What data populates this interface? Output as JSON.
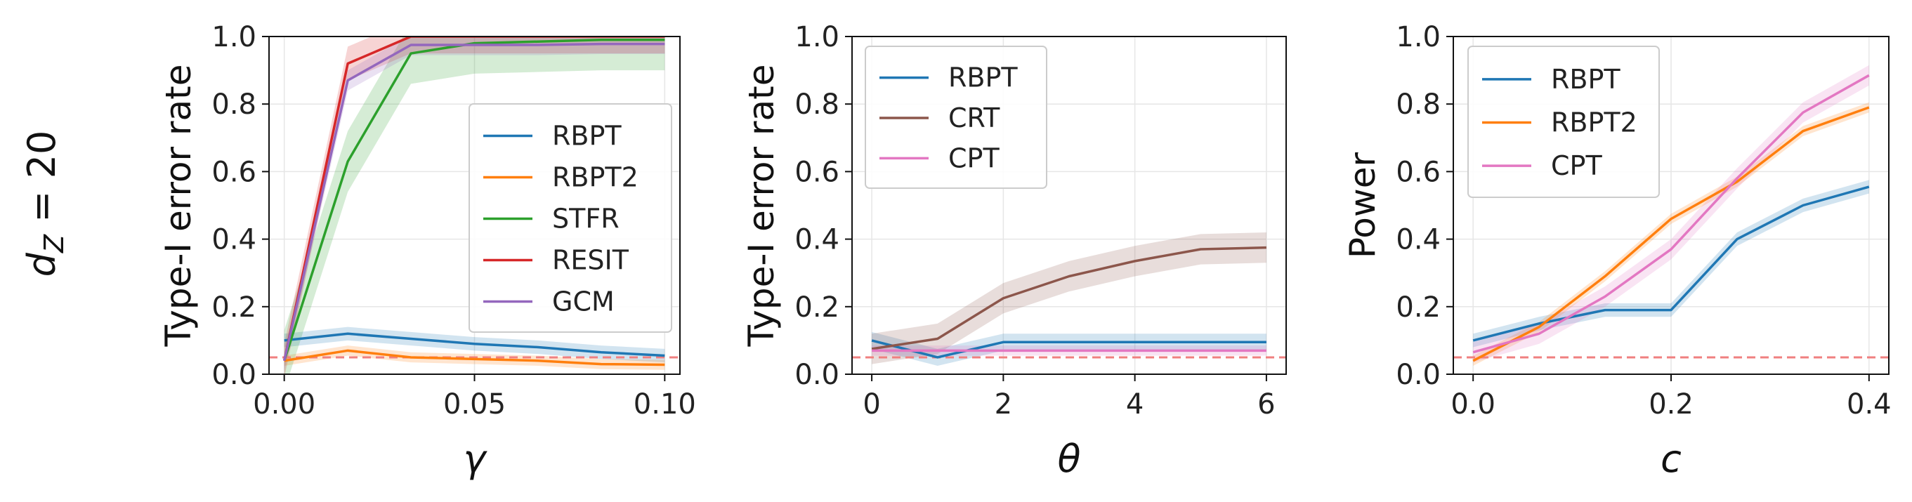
{
  "row_label": "d",
  "row_label_sub": "Z",
  "row_label_eq": " = 20",
  "reference_line": {
    "value": 0.05,
    "color": "#f08080"
  },
  "chart_data": [
    {
      "type": "line",
      "ylabel": "Type-I error rate",
      "xlabel": "γ",
      "xlim": [
        -0.004,
        0.104
      ],
      "ylim": [
        0,
        1
      ],
      "xticks": [
        0,
        0.05,
        0.1
      ],
      "xtick_labels": [
        "0.00",
        "0.05",
        "0.10"
      ],
      "yticks": [
        0,
        0.2,
        0.4,
        0.6,
        0.8,
        1.0
      ],
      "ytick_labels": [
        "0.0",
        "0.2",
        "0.4",
        "0.6",
        "0.8",
        "1.0"
      ],
      "legend_position": "center-right",
      "grid": true,
      "x": [
        0,
        0.0167,
        0.0333,
        0.05,
        0.0667,
        0.0833,
        0.1
      ],
      "series": [
        {
          "name": "RBPT",
          "color": "#1f77b4",
          "values": [
            0.1,
            0.12,
            0.105,
            0.09,
            0.08,
            0.065,
            0.055
          ],
          "band": 0.02
        },
        {
          "name": "RBPT2",
          "color": "#ff7f0e",
          "values": [
            0.04,
            0.07,
            0.05,
            0.045,
            0.04,
            0.03,
            0.028
          ],
          "band": 0.015
        },
        {
          "name": "STFR",
          "color": "#2ca02c",
          "values": [
            0.04,
            0.63,
            0.95,
            0.98,
            0.985,
            0.99,
            0.99
          ],
          "band": 0.09
        },
        {
          "name": "RESIT",
          "color": "#d62728",
          "values": [
            0.04,
            0.92,
            1.0,
            1.0,
            1.0,
            1.0,
            1.0
          ],
          "band": 0.05
        },
        {
          "name": "GCM",
          "color": "#9467bd",
          "values": [
            0.04,
            0.87,
            0.975,
            0.975,
            0.975,
            0.978,
            0.978
          ],
          "band": 0.03
        }
      ]
    },
    {
      "type": "line",
      "ylabel": "Type-I error rate",
      "xlabel": "θ",
      "xlim": [
        -0.3,
        6.3
      ],
      "ylim": [
        0,
        1
      ],
      "xticks": [
        0,
        2,
        4,
        6
      ],
      "xtick_labels": [
        "0",
        "2",
        "4",
        "6"
      ],
      "yticks": [
        0,
        0.2,
        0.4,
        0.6,
        0.8,
        1.0
      ],
      "ytick_labels": [
        "0.0",
        "0.2",
        "0.4",
        "0.6",
        "0.8",
        "1.0"
      ],
      "legend_position": "top-left",
      "grid": true,
      "x": [
        0,
        1,
        2,
        3,
        4,
        5,
        6
      ],
      "series": [
        {
          "name": "RBPT",
          "color": "#1f77b4",
          "values": [
            0.1,
            0.05,
            0.095,
            0.095,
            0.095,
            0.095,
            0.095
          ],
          "band": 0.025
        },
        {
          "name": "CRT",
          "color": "#8c564b",
          "values": [
            0.075,
            0.105,
            0.225,
            0.29,
            0.335,
            0.37,
            0.375
          ],
          "band": 0.045
        },
        {
          "name": "CPT",
          "color": "#e377c2",
          "values": [
            0.07,
            0.07,
            0.07,
            0.07,
            0.07,
            0.07,
            0.07
          ],
          "band": 0.015
        }
      ]
    },
    {
      "type": "line",
      "ylabel": "Power",
      "xlabel": "c",
      "xlim": [
        -0.02,
        0.42
      ],
      "ylim": [
        0,
        1
      ],
      "xticks": [
        0,
        0.2,
        0.4
      ],
      "xtick_labels": [
        "0.0",
        "0.2",
        "0.4"
      ],
      "yticks": [
        0,
        0.2,
        0.4,
        0.6,
        0.8,
        1.0
      ],
      "ytick_labels": [
        "0.0",
        "0.2",
        "0.4",
        "0.6",
        "0.8",
        "1.0"
      ],
      "legend_position": "top-left",
      "grid": true,
      "x": [
        0,
        0.0667,
        0.1333,
        0.2,
        0.2667,
        0.3333,
        0.4
      ],
      "series": [
        {
          "name": "RBPT",
          "color": "#1f77b4",
          "values": [
            0.1,
            0.15,
            0.19,
            0.19,
            0.4,
            0.5,
            0.555
          ],
          "band": 0.02
        },
        {
          "name": "RBPT2",
          "color": "#ff7f0e",
          "values": [
            0.04,
            0.14,
            0.29,
            0.46,
            0.57,
            0.72,
            0.79
          ],
          "band": 0.015
        },
        {
          "name": "CPT",
          "color": "#e377c2",
          "values": [
            0.065,
            0.12,
            0.23,
            0.37,
            0.58,
            0.775,
            0.885
          ],
          "band": 0.03
        }
      ]
    }
  ]
}
